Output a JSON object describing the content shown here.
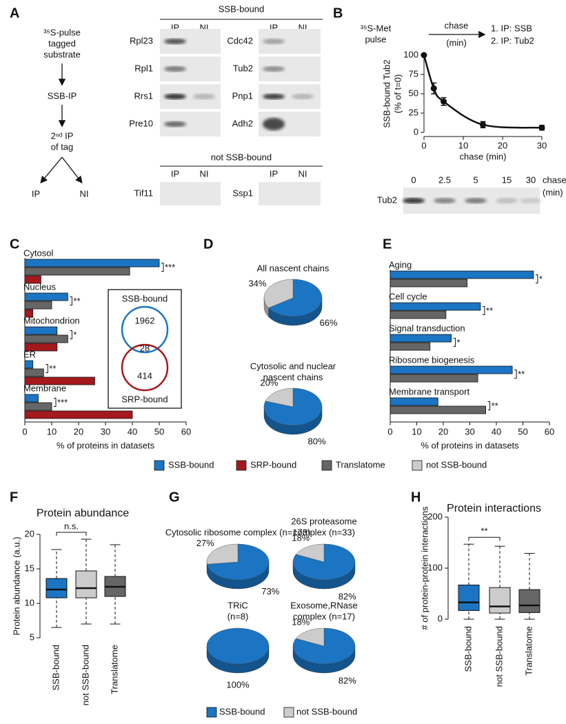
{
  "panel_labels": [
    "A",
    "B",
    "C",
    "D",
    "E",
    "F",
    "G",
    "H"
  ],
  "panel_a": {
    "flow": {
      "pulse": [
        "³⁵S-pulse",
        "tagged",
        "substrate"
      ],
      "ip1": "SSB-IP",
      "ip2": [
        "2ⁿᵈ IP",
        "of tag"
      ],
      "outcomes": [
        "IP",
        "NI"
      ]
    },
    "bound_header": "SSB-bound",
    "lanes": [
      "IP",
      "NI"
    ],
    "bound_left": [
      "Rpl23",
      "Rpl1",
      "Rrs1",
      "Pre10"
    ],
    "bound_right": [
      "Cdc42",
      "Tub2",
      "Pnp1",
      "Adh2"
    ],
    "unbound_header": "not SSB-bound",
    "unbound": [
      "Tif11",
      "Ssp1"
    ]
  },
  "panel_b": {
    "pulse": [
      "³⁵S-Met",
      "pulse"
    ],
    "chase": [
      "chase",
      "(min)"
    ],
    "steps": [
      "1. IP: SSB",
      "2. IP: Tub2"
    ],
    "gel_lanes": [
      "0",
      "2.5",
      "5",
      "15",
      "30"
    ],
    "gel_axis": [
      "chase",
      "(min)"
    ],
    "gel_row": "Tub2"
  },
  "chart_data": [
    {
      "type": "line",
      "x": [
        0,
        2.5,
        5,
        15,
        30
      ],
      "series": [
        {
          "color": "#111111",
          "values": [
            100,
            57,
            40,
            10,
            6
          ],
          "errors": [
            null,
            7,
            5,
            4,
            3
          ]
        }
      ],
      "xlim": [
        0,
        30
      ],
      "ylim": [
        0,
        100
      ],
      "xticks": [
        0,
        10,
        20,
        30
      ],
      "yticks": [
        0,
        25,
        50,
        75,
        100
      ],
      "xlabel": "chase (min)",
      "ylabel": [
        "SSB-bound Tub2",
        "(% of t=0)"
      ]
    },
    {
      "type": "hbar",
      "categories": [
        "Cytosol",
        "Nucleus",
        "Mitochondrion",
        "ER",
        "Membrane"
      ],
      "series": [
        {
          "name": "SSB-bound",
          "color": "#1b75c3",
          "values": [
            50,
            16,
            12,
            3,
            5
          ]
        },
        {
          "name": "Translatome",
          "color": "#666666",
          "values": [
            39,
            10,
            16,
            7,
            10
          ]
        },
        {
          "name": "SRP-bound",
          "color": "#a3191e",
          "values": [
            6,
            3,
            12,
            26,
            40
          ]
        }
      ],
      "significance": [
        "***",
        "**",
        "*",
        "**",
        "***"
      ],
      "xlim": [
        0,
        60
      ],
      "xticks": [
        0,
        10,
        20,
        30,
        40,
        50,
        60
      ],
      "xlabel": "% of proteins in datasets",
      "venn": {
        "sets": [
          "SSB-bound",
          "SRP-bound"
        ],
        "colors": [
          "#1b75c3",
          "#a3191e"
        ],
        "counts": [
          1962,
          28,
          414
        ]
      }
    },
    {
      "type": "pie",
      "names": [
        "SSB-bound",
        "not SSB-bound"
      ],
      "colors": [
        "#1b75c3",
        "#cccccc"
      ],
      "pies": [
        {
          "title": [
            "All nascent chains"
          ],
          "values": [
            66,
            34
          ],
          "value_labels": [
            "66%",
            "34%"
          ]
        },
        {
          "title": [
            "Cytosolic and nuclear",
            "nascent chains"
          ],
          "values": [
            80,
            20
          ],
          "value_labels": [
            "80%",
            "20%"
          ]
        }
      ]
    },
    {
      "type": "hbar",
      "categories": [
        "Aging",
        "Cell cycle",
        "Signal transduction",
        "Ribosome biogenesis",
        "Membrane transport"
      ],
      "series": [
        {
          "color": "#1b75c3",
          "values": [
            54,
            34,
            23,
            46,
            18
          ]
        },
        {
          "color": "#666666",
          "values": [
            29,
            21,
            15,
            33,
            36
          ]
        }
      ],
      "significance": [
        "*",
        "**",
        "*",
        "**",
        "**"
      ],
      "xlim": [
        0,
        60
      ],
      "xticks": [
        0,
        10,
        20,
        30,
        40,
        50,
        60
      ],
      "xlabel": "% of proteins in datasets"
    },
    {
      "type": "box",
      "title": "Protein abundance",
      "ylabel": "Protein abundance (a.u.)",
      "categories": [
        "SSB-bound",
        "not SSB-bound",
        "Translatome"
      ],
      "boxes": [
        {
          "color": "#1b75c3",
          "low": 6.5,
          "q1": 10.8,
          "median": 12,
          "q3": 13.6,
          "high": 17.8
        },
        {
          "color": "#cccccc",
          "low": 7,
          "q1": 10.8,
          "median": 12.2,
          "q3": 14.7,
          "high": 19.3
        },
        {
          "color": "#666666",
          "low": 7,
          "q1": 11,
          "median": 12.4,
          "q3": 13.9,
          "high": 18.5
        }
      ],
      "ylim": [
        5,
        20
      ],
      "yticks": [
        5,
        10,
        15,
        20
      ],
      "comparison": "n.s."
    },
    {
      "type": "pie",
      "names": [
        "SSB-bound",
        "not SSB-bound"
      ],
      "colors": [
        "#1b75c3",
        "#cccccc"
      ],
      "pies": [
        {
          "title": [
            "Cytosolic ribosome complex (n=173)"
          ],
          "values": [
            73,
            27
          ],
          "value_labels": [
            "73%",
            "27%"
          ]
        },
        {
          "title": [
            "26S proteasome",
            "complex (n=33)"
          ],
          "values": [
            82,
            18
          ],
          "value_labels": [
            "82%",
            "18%"
          ]
        },
        {
          "title": [
            "TRiC",
            "(n=8)"
          ],
          "values": [
            100
          ],
          "value_labels": [
            "100%"
          ]
        },
        {
          "title": [
            "Exosome,RNase",
            "complex (n=17)"
          ],
          "values": [
            82,
            18
          ],
          "value_labels": [
            "82%",
            "18%"
          ]
        }
      ]
    },
    {
      "type": "box",
      "title": "Protein interactions",
      "ylabel": "# of protein-protein interactions",
      "categories": [
        "SSB-bound",
        "not SSB-bound",
        "Translatome"
      ],
      "boxes": [
        {
          "color": "#1b75c3",
          "low": 0,
          "q1": 17,
          "median": 33,
          "q3": 67,
          "high": 147
        },
        {
          "color": "#cccccc",
          "low": 0,
          "q1": 12,
          "median": 25,
          "q3": 62,
          "high": 143
        },
        {
          "color": "#666666",
          "low": 0,
          "q1": 13,
          "median": 27,
          "q3": 58,
          "high": 129
        }
      ],
      "ylim": [
        0,
        200
      ],
      "yticks": [
        0,
        100,
        200
      ],
      "comparison": "**"
    }
  ]
}
